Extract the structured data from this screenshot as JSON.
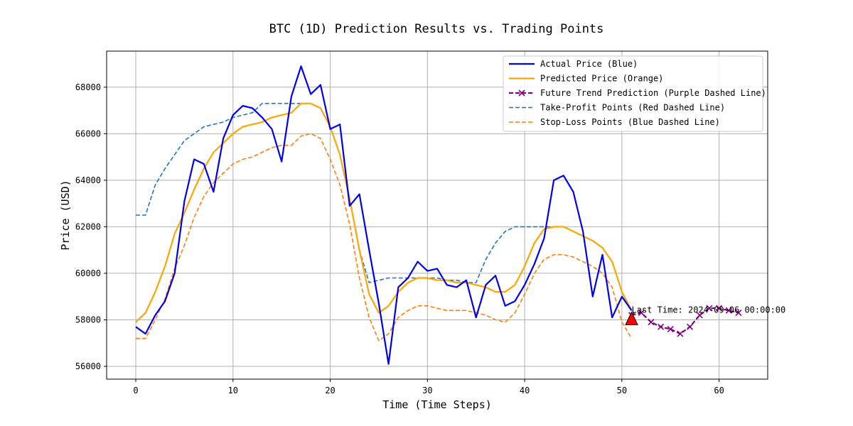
{
  "chart_data": {
    "type": "line",
    "title": "BTC (1D) Prediction Results vs. Trading Points",
    "xlabel": "Time (Time Steps)",
    "ylabel": "Price (USD)",
    "xlim": [
      -3,
      65
    ],
    "ylim": [
      55450,
      69550
    ],
    "xticks": [
      0,
      10,
      20,
      30,
      40,
      50,
      60
    ],
    "yticks": [
      56000,
      58000,
      60000,
      62000,
      64000,
      66000,
      68000
    ],
    "grid": true,
    "legend_position": "top-right",
    "series": [
      {
        "name": "Actual Price (Blue)",
        "color": "#0000ee",
        "style": "solid",
        "x": [
          0,
          1,
          2,
          3,
          4,
          5,
          6,
          7,
          8,
          9,
          10,
          11,
          12,
          13,
          14,
          15,
          16,
          17,
          18,
          19,
          20,
          21,
          22,
          23,
          24,
          25,
          26,
          27,
          28,
          29,
          30,
          31,
          32,
          33,
          34,
          35,
          36,
          37,
          38,
          39,
          40,
          41,
          42,
          43,
          44,
          45,
          46,
          47,
          48,
          49,
          50,
          51
        ],
        "values": [
          57700,
          57400,
          58200,
          58800,
          60000,
          63100,
          64900,
          64700,
          63500,
          65800,
          66800,
          67200,
          67100,
          66700,
          66200,
          64800,
          67600,
          68900,
          67700,
          68100,
          66200,
          66400,
          62900,
          63400,
          61000,
          58700,
          56100,
          59400,
          59800,
          60500,
          60100,
          60200,
          59500,
          59400,
          59700,
          58100,
          59500,
          59900,
          58600,
          58800,
          59500,
          60400,
          61500,
          64000,
          64200,
          63500,
          61800,
          59000,
          60800,
          58100,
          59000,
          58400
        ]
      },
      {
        "name": "Predicted Price (Orange)",
        "color": "#ffa500",
        "style": "solid",
        "x": [
          0,
          1,
          2,
          3,
          4,
          5,
          6,
          7,
          8,
          9,
          10,
          11,
          12,
          13,
          14,
          15,
          16,
          17,
          18,
          19,
          20,
          21,
          22,
          23,
          24,
          25,
          26,
          27,
          28,
          29,
          30,
          31,
          32,
          33,
          34,
          35,
          36,
          37,
          38,
          39,
          40,
          41,
          42,
          43,
          44,
          45,
          46,
          47,
          48,
          49,
          50,
          51
        ],
        "values": [
          57900,
          58300,
          59200,
          60300,
          61700,
          62600,
          63600,
          64500,
          65200,
          65600,
          66000,
          66300,
          66400,
          66500,
          66700,
          66800,
          66900,
          67300,
          67300,
          67100,
          66300,
          65100,
          63200,
          61000,
          59100,
          58300,
          58600,
          59200,
          59600,
          59800,
          59800,
          59700,
          59700,
          59600,
          59600,
          59500,
          59400,
          59200,
          59200,
          59500,
          60300,
          61300,
          61900,
          62000,
          62000,
          61800,
          61600,
          61400,
          61100,
          60500,
          59200,
          58400
        ]
      },
      {
        "name": "Future Trend Prediction (Purple Dashed Line)",
        "color": "#800080",
        "style": "dashed",
        "marker": "x",
        "x": [
          51,
          52,
          53,
          54,
          55,
          56,
          57,
          58,
          59,
          60,
          61,
          62
        ],
        "values": [
          58200,
          58300,
          57900,
          57700,
          57600,
          57400,
          57700,
          58200,
          58500,
          58500,
          58400,
          58300
        ]
      },
      {
        "name": "Take-Profit Points (Red Dashed Line)",
        "color": "#1f77b4",
        "style": "dashed",
        "x": [
          0,
          1,
          2,
          3,
          4,
          5,
          6,
          7,
          8,
          9,
          10,
          11,
          12,
          13,
          14,
          15,
          16,
          17,
          18,
          19,
          20,
          21,
          22,
          23,
          24,
          25,
          26,
          27,
          28,
          29,
          30,
          31,
          32,
          33,
          34,
          35,
          36,
          37,
          38,
          39,
          40,
          41,
          42,
          43,
          44,
          45,
          46,
          47,
          48,
          49,
          50,
          51
        ],
        "values": [
          62500,
          62500,
          63800,
          64500,
          65100,
          65700,
          66000,
          66300,
          66400,
          66500,
          66700,
          66800,
          66900,
          67300,
          67300,
          67300,
          67300,
          67300,
          67300,
          67100,
          66300,
          65100,
          63200,
          61000,
          59600,
          59700,
          59800,
          59800,
          59800,
          59800,
          59800,
          59800,
          59700,
          59700,
          59600,
          59600,
          60600,
          61300,
          61800,
          62000,
          62000,
          62000,
          62000,
          62000,
          62000,
          61800,
          61600,
          61400,
          61100,
          60500,
          59200,
          58400
        ]
      },
      {
        "name": "Stop-Loss Points (Blue Dashed Line)",
        "color": "#ff7f0e",
        "style": "dashed",
        "x": [
          0,
          1,
          2,
          3,
          4,
          5,
          6,
          7,
          8,
          9,
          10,
          11,
          12,
          13,
          14,
          15,
          16,
          17,
          18,
          19,
          20,
          21,
          22,
          23,
          24,
          25,
          26,
          27,
          28,
          29,
          30,
          31,
          32,
          33,
          34,
          35,
          36,
          37,
          38,
          39,
          40,
          41,
          42,
          43,
          44,
          45,
          46,
          47,
          48,
          49,
          50,
          51
        ],
        "values": [
          57200,
          57200,
          58000,
          58900,
          60200,
          61200,
          62400,
          63300,
          63900,
          64300,
          64700,
          64900,
          65000,
          65200,
          65400,
          65500,
          65500,
          65900,
          66000,
          65800,
          64900,
          63800,
          62100,
          59800,
          58100,
          57100,
          57400,
          58100,
          58400,
          58600,
          58600,
          58500,
          58400,
          58400,
          58400,
          58300,
          58200,
          58000,
          57900,
          58300,
          59100,
          60000,
          60600,
          60800,
          60800,
          60700,
          60500,
          60300,
          60000,
          59400,
          57900,
          57200
        ]
      }
    ],
    "annotations": [
      {
        "type": "marker",
        "shape": "triangle",
        "x": 51,
        "y": 58000,
        "color": "#ff0000"
      },
      {
        "type": "text",
        "x": 51,
        "y": 58300,
        "text": "Last Time: 2024-09-06 00:00:00"
      }
    ]
  }
}
